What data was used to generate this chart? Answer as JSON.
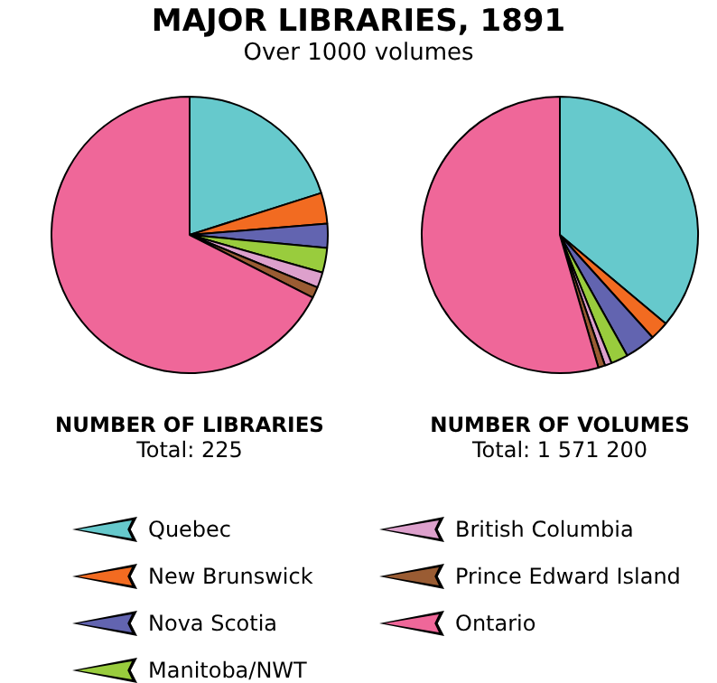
{
  "chart_data": {
    "type": "pie",
    "title": "MAJOR LIBRARIES, 1891",
    "subtitle": "Over 1000 volumes",
    "annotations": [
      "Total: 225",
      "Total: 1 571 200"
    ],
    "categories": [
      "Quebec",
      "New Brunswick",
      "Nova Scotia",
      "Manitoba/NWT",
      "British Columbia",
      "Prince Edward Island",
      "Ontario"
    ],
    "colors": [
      "#66c9cc",
      "#f26b21",
      "#6264b0",
      "#99cc3d",
      "#dda0cc",
      "#9a5c33",
      "#ef6799"
    ],
    "series": [
      {
        "name": "NUMBER OF LIBRARIES",
        "values": [
          20.1,
          3.6,
          2.8,
          2.9,
          1.8,
          1.3,
          67.5
        ]
      },
      {
        "name": "NUMBER OF VOLUMES",
        "values": [
          36.1,
          2.2,
          3.6,
          2.0,
          0.8,
          0.8,
          54.5
        ]
      }
    ],
    "legend": "bottom"
  }
}
